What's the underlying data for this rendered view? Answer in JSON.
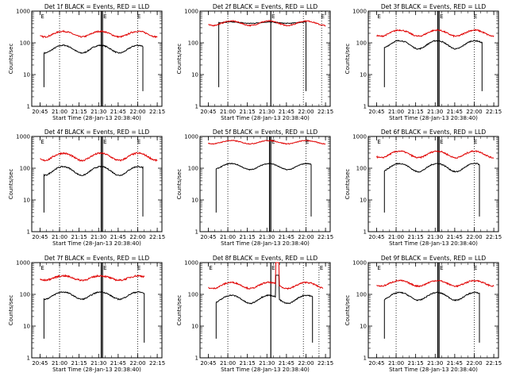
{
  "chart_data": {
    "type": "line",
    "grid": "dotted vertical markers",
    "y_scale": "log",
    "ylim": [
      1,
      1000
    ],
    "y_ticks": [
      "1",
      "10",
      "100",
      "1000"
    ],
    "x_ticks": [
      "20:45",
      "21:00",
      "21:15",
      "21:30",
      "21:45",
      "22:00",
      "22:15"
    ],
    "xlim_hours": [
      20.644,
      22.31
    ],
    "ylabel": "Counts/sec",
    "xlabel": "Start Time (28-Jan-13 20:38:40)",
    "marker_letter": "E",
    "colors": {
      "events": "#000000",
      "lld": "#e00000"
    },
    "panels": [
      {
        "title": "Det 1f BLACK = Events, RED = LLD",
        "dotted_lines": [
          "21:00",
          "22:00"
        ],
        "solid_lines": [
          "21:32",
          "21:33"
        ],
        "markers_E": [
          "20:45",
          "21:33",
          "21:59"
        ],
        "series": [
          {
            "color": "black",
            "start": "20:48",
            "end": "22:04",
            "base": 55,
            "amp": 0.65,
            "noise": 0.04,
            "spike": null
          },
          {
            "color": "red",
            "start": "20:45",
            "end": "22:15",
            "base": 170,
            "amp": 0.45,
            "noise": 0.05,
            "spike": null
          }
        ]
      },
      {
        "title": "Det 2f BLACK = Events, RED = LLD",
        "dotted_lines": [
          "21:00",
          "21:58",
          "22:12"
        ],
        "solid_lines": [
          "21:33"
        ],
        "markers_E": [
          "21:33",
          "22:11"
        ],
        "series": [
          {
            "color": "black",
            "start": "20:53",
            "end": "22:00",
            "base": 420,
            "amp": 0.1,
            "noise": 0.03,
            "spike": null
          },
          {
            "color": "red",
            "start": "20:45",
            "end": "22:15",
            "base": 380,
            "amp": 0.35,
            "noise": 0.04,
            "spike": null
          }
        ]
      },
      {
        "title": "Det 3f BLACK = Events, RED = LLD",
        "dotted_lines": [
          "21:00",
          "22:00"
        ],
        "solid_lines": [
          "21:32",
          "21:33"
        ],
        "markers_E": [
          "20:45",
          "21:33",
          "21:59"
        ],
        "series": [
          {
            "color": "black",
            "start": "20:51",
            "end": "22:06",
            "base": 75,
            "amp": 0.7,
            "noise": 0.04,
            "spike": null
          },
          {
            "color": "red",
            "start": "20:45",
            "end": "22:15",
            "base": 180,
            "amp": 0.5,
            "noise": 0.05,
            "spike": null
          }
        ]
      },
      {
        "title": "Det 4f BLACK = Events, RED = LLD",
        "dotted_lines": [
          "21:00",
          "22:00"
        ],
        "solid_lines": [
          "21:32",
          "21:33"
        ],
        "markers_E": [
          "20:45",
          "21:33",
          "21:59"
        ],
        "series": [
          {
            "color": "black",
            "start": "20:48",
            "end": "22:04",
            "base": 70,
            "amp": 0.75,
            "noise": 0.04,
            "spike": null
          },
          {
            "color": "red",
            "start": "20:45",
            "end": "22:15",
            "base": 200,
            "amp": 0.6,
            "noise": 0.06,
            "spike": null
          }
        ]
      },
      {
        "title": "Det 5f BLACK = Events, RED = LLD",
        "dotted_lines": [
          "21:00",
          "22:00"
        ],
        "solid_lines": [
          "21:32",
          "21:33"
        ],
        "markers_E": [
          "21:33",
          "21:59"
        ],
        "series": [
          {
            "color": "black",
            "start": "20:51",
            "end": "22:04",
            "base": 100,
            "amp": 0.5,
            "noise": 0.03,
            "spike": null
          },
          {
            "color": "red",
            "start": "20:45",
            "end": "22:15",
            "base": 620,
            "amp": 0.25,
            "noise": 0.03,
            "spike": null
          }
        ]
      },
      {
        "title": "Det 6f BLACK = Events, RED = LLD",
        "dotted_lines": [
          "21:00",
          "22:00"
        ],
        "solid_lines": [
          "21:32",
          "21:33"
        ],
        "markers_E": [
          "20:45",
          "21:33",
          "21:59"
        ],
        "series": [
          {
            "color": "black",
            "start": "20:51",
            "end": "22:04",
            "base": 90,
            "amp": 0.7,
            "noise": 0.04,
            "spike": null
          },
          {
            "color": "red",
            "start": "20:45",
            "end": "22:15",
            "base": 240,
            "amp": 0.55,
            "noise": 0.05,
            "spike": null
          }
        ]
      },
      {
        "title": "Det 7f BLACK = Events, RED = LLD",
        "dotted_lines": [
          "21:00",
          "22:00"
        ],
        "solid_lines": [
          "21:32",
          "21:33"
        ],
        "markers_E": [
          "20:45",
          "21:33",
          "21:59"
        ],
        "series": [
          {
            "color": "black",
            "start": "20:48",
            "end": "22:05",
            "base": 80,
            "amp": 0.6,
            "noise": 0.04,
            "spike": null
          },
          {
            "color": "red",
            "start": "20:45",
            "end": "22:05",
            "base": 300,
            "amp": 0.35,
            "noise": 0.06,
            "spike": null
          }
        ]
      },
      {
        "title": "Det 8f BLACK = Events, RED = LLD",
        "dotted_lines": [
          "21:00",
          "21:58",
          "22:10"
        ],
        "solid_lines": [
          "21:33"
        ],
        "markers_E": [
          "20:45",
          "21:33",
          "22:10"
        ],
        "series": [
          {
            "color": "black",
            "start": "20:51",
            "end": "22:05",
            "base": 60,
            "amp": 0.7,
            "noise": 0.04,
            "spike": "21:38"
          },
          {
            "color": "red",
            "start": "20:45",
            "end": "22:13",
            "base": 170,
            "amp": 0.5,
            "noise": 0.05,
            "spike": "21:38"
          }
        ]
      },
      {
        "title": "Det 9f BLACK = Events, RED = LLD",
        "dotted_lines": [
          "21:00",
          "22:00"
        ],
        "solid_lines": [
          "21:32",
          "21:33"
        ],
        "markers_E": [
          "20:45",
          "21:33",
          "21:59"
        ],
        "series": [
          {
            "color": "black",
            "start": "20:51",
            "end": "22:04",
            "base": 75,
            "amp": 0.65,
            "noise": 0.04,
            "spike": null
          },
          {
            "color": "red",
            "start": "20:45",
            "end": "22:15",
            "base": 200,
            "amp": 0.45,
            "noise": 0.05,
            "spike": null
          }
        ]
      }
    ]
  }
}
